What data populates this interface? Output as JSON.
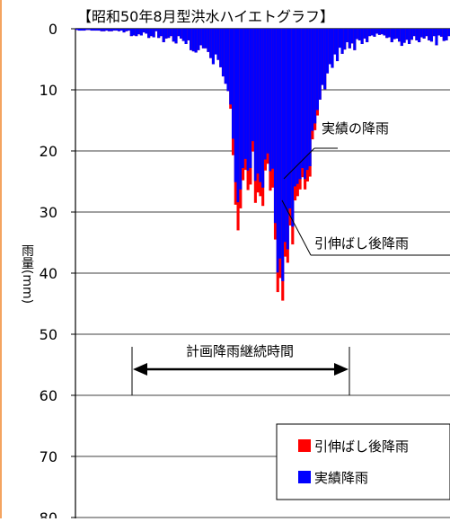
{
  "chart_data": {
    "type": "bar",
    "title": "【昭和50年8月型洪水ハイエトグラフ】",
    "ylabel": "雨量(mm)",
    "ylim": [
      0,
      80
    ],
    "y_inverted": true,
    "y_ticks": [
      "0",
      "10",
      "20",
      "30",
      "40",
      "50",
      "60",
      "70",
      "80"
    ],
    "grid": true,
    "legend_position": "bottom-right",
    "colors": {
      "extended": "#ff0000",
      "actual": "#0000ff",
      "frame": "#f4a460"
    },
    "series": [
      {
        "name": "引伸ばし後降雨",
        "values": [
          0.2,
          0.3,
          0.3,
          0.3,
          0.2,
          0.2,
          0.3,
          0.3,
          0.3,
          0.3,
          0.4,
          0.4,
          0.3,
          0.4,
          0.4,
          0.3,
          0.3,
          0.4,
          0.3,
          0.6,
          0.4,
          0.3,
          1.2,
          1.1,
          1.2,
          0.9,
          1.1,
          0.6,
          0.8,
          1.5,
          1.2,
          1.4,
          0.4,
          1.5,
          1.2,
          2.2,
          1.6,
          1.5,
          1.2,
          2.1,
          2.4,
          1.2,
          1.6,
          2.0,
          2.5,
          1.9,
          3.5,
          3.7,
          3.9,
          3.5,
          2.7,
          3.2,
          3.2,
          3.8,
          4.8,
          5.8,
          4.2,
          5.1,
          6.3,
          7.8,
          9.0,
          10.2,
          13.1,
          20.7,
          28.8,
          33.0,
          29.4,
          24.8,
          23.1,
          26.4,
          25.5,
          20.1,
          28.5,
          26.8,
          27.4,
          29.0,
          23.2,
          22.1,
          26.5,
          26.0,
          34.5,
          43.1,
          40.8,
          44.5,
          37.3,
          38.3,
          32.2,
          35.3,
          28.1,
          27.4,
          26.3,
          24.3,
          26.3,
          25.0,
          24.2,
          18.1,
          16.6,
          14.2,
          11.6,
          9.2,
          9.9,
          7.3,
          5.8,
          6.4,
          4.2,
          5.3,
          3.1,
          4.1,
          3.4,
          2.2,
          3.2,
          2.4,
          3.5,
          1.7,
          1.9,
          2.5,
          1.6,
          2.2,
          1.2,
          1.1,
          1.3,
          0.8,
          1.0,
          0.9,
          1.1,
          1.5,
          1.4,
          2.2,
          1.7,
          1.6,
          2.1,
          2.8,
          2.3,
          1.8,
          2.5,
          1.8,
          1.2,
          1.9,
          2.2,
          1.4,
          1.6,
          1.2,
          1.9,
          2.1,
          1.2,
          2.7,
          1.1,
          1.3,
          2.0,
          1.9,
          1.2
        ]
      },
      {
        "name": "実績降雨",
        "values": [
          0.2,
          0.3,
          0.3,
          0.3,
          0.2,
          0.2,
          0.3,
          0.3,
          0.3,
          0.3,
          0.4,
          0.4,
          0.3,
          0.4,
          0.4,
          0.3,
          0.3,
          0.4,
          0.3,
          0.6,
          0.4,
          0.3,
          1.2,
          1.1,
          1.2,
          0.9,
          1.1,
          0.6,
          0.8,
          1.5,
          1.2,
          1.4,
          0.4,
          1.5,
          1.2,
          2.2,
          1.6,
          1.5,
          1.2,
          2.1,
          2.4,
          1.2,
          1.6,
          2.0,
          2.5,
          1.9,
          3.5,
          3.7,
          3.9,
          3.5,
          2.7,
          3.2,
          3.2,
          3.8,
          4.8,
          5.8,
          4.2,
          5.1,
          6.3,
          7.8,
          9.0,
          10.2,
          12.4,
          18.0,
          25.1,
          28.4,
          26.3,
          22.8,
          21.3,
          23.2,
          22.8,
          18.4,
          24.9,
          23.7,
          25.1,
          26.0,
          21.4,
          20.4,
          23.3,
          22.9,
          31.8,
          39.9,
          37.6,
          41.3,
          34.9,
          36.1,
          29.4,
          32.4,
          25.8,
          25.4,
          24.6,
          22.8,
          24.6,
          23.1,
          22.5,
          16.7,
          15.5,
          13.3,
          11.6,
          9.2,
          9.9,
          7.3,
          5.8,
          6.4,
          4.2,
          5.3,
          3.1,
          4.1,
          3.4,
          2.2,
          3.2,
          2.4,
          3.5,
          1.7,
          1.9,
          2.5,
          1.6,
          2.2,
          1.2,
          1.1,
          1.3,
          0.8,
          1.0,
          0.9,
          1.1,
          1.5,
          1.4,
          2.2,
          1.7,
          1.6,
          2.1,
          2.8,
          2.3,
          1.8,
          2.5,
          1.8,
          1.2,
          1.9,
          2.2,
          1.4,
          1.6,
          1.2,
          1.9,
          2.1,
          1.2,
          2.7,
          1.1,
          1.3,
          2.0,
          1.9,
          1.2
        ]
      }
    ],
    "annotations": {
      "actual_callout": "実績の降雨",
      "extended_callout": "引伸ばし後降雨",
      "period_label": "計画降雨継続時間"
    }
  }
}
